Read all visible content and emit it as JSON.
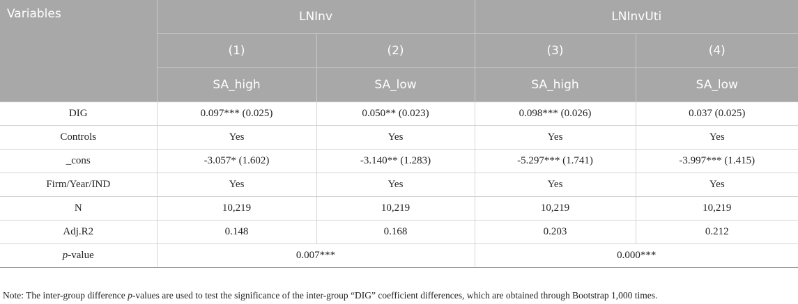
{
  "header": {
    "variables": "Variables",
    "group1": "LNInv",
    "group2": "LNInvUti",
    "models": [
      "(1)",
      "(2)",
      "(3)",
      "(4)"
    ],
    "samples": [
      "SA_high",
      "SA_low",
      "SA_high",
      "SA_low"
    ]
  },
  "rows": [
    {
      "label": "DIG",
      "cells": [
        "0.097*** (0.025)",
        "0.050** (0.023)",
        "0.098*** (0.026)",
        "0.037 (0.025)"
      ]
    },
    {
      "label": "Controls",
      "cells": [
        "Yes",
        "Yes",
        "Yes",
        "Yes"
      ]
    },
    {
      "label": "_cons",
      "cells": [
        "-3.057* (1.602)",
        "-3.140** (1.283)",
        "-5.297*** (1.741)",
        "-3.997*** (1.415)"
      ]
    },
    {
      "label": "Firm/Year/IND",
      "cells": [
        "Yes",
        "Yes",
        "Yes",
        "Yes"
      ]
    },
    {
      "label": "N",
      "cells": [
        "10,219",
        "10,219",
        "10,219",
        "10,219"
      ]
    },
    {
      "label": "Adj.R2",
      "cells": [
        "0.148",
        "0.168",
        "0.203",
        "0.212"
      ]
    }
  ],
  "pvalue_row": {
    "label_italic": "p",
    "label_rest": "-value",
    "group1": "0.007***",
    "group2": "0.000***"
  },
  "note": {
    "before": "Note: The inter-group difference ",
    "italic": "p",
    "after": "-values are used to test the significance of the inter-group “DIG” coefficient differences, which are obtained through Bootstrap 1,000 times."
  }
}
